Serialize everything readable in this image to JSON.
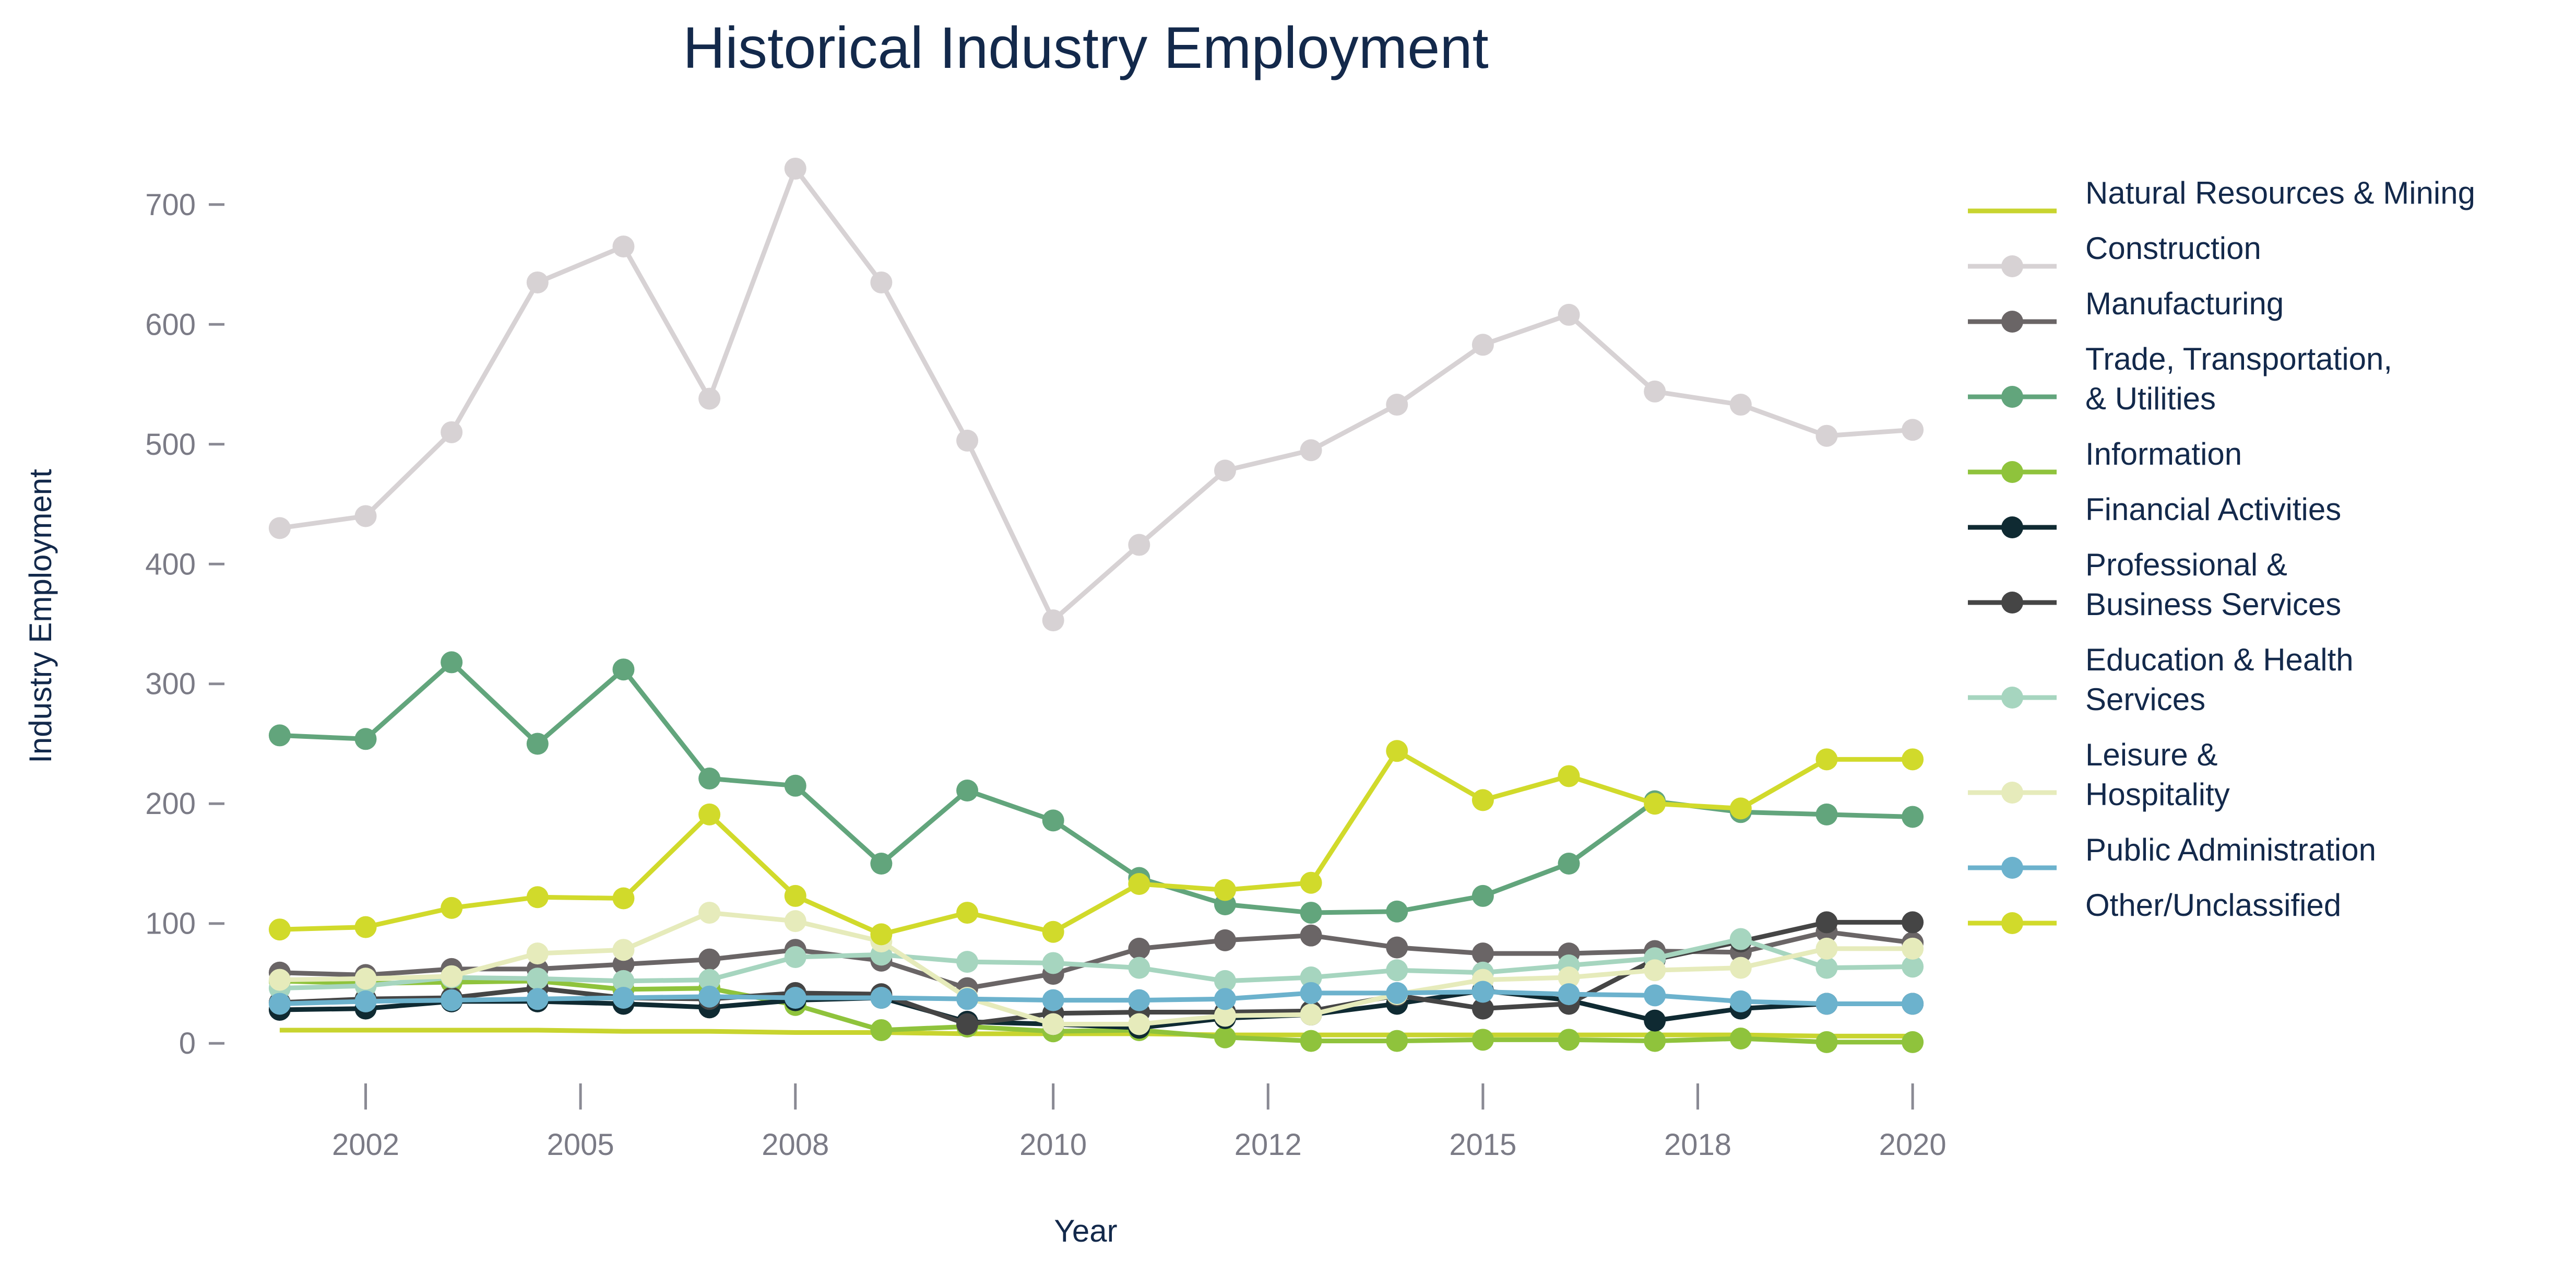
{
  "chart_data": {
    "type": "line",
    "title": "Historical Industry Employment",
    "xlabel": "Year",
    "ylabel": "Industry Employment",
    "x": [
      2001,
      2002,
      2003,
      2004,
      2005,
      2006,
      2007,
      2008,
      2009,
      2010,
      2011,
      2012,
      2013,
      2014,
      2015,
      2016,
      2017,
      2018,
      2019,
      2020
    ],
    "x_ticks": [
      2002,
      2005,
      2008,
      2010,
      2012,
      2015,
      2018,
      2020
    ],
    "x_tick_positions": [
      2002,
      2004.5,
      2007,
      2010,
      2012.5,
      2015,
      2017.5,
      2020
    ],
    "xlim": [
      2000.6,
      2020.4
    ],
    "ylim": [
      -40,
      740
    ],
    "y_ticks": [
      0,
      100,
      200,
      300,
      400,
      500,
      600,
      700
    ],
    "grid": false,
    "legend_position": "right",
    "series": [
      {
        "name": "Natural Resources & Mining",
        "color": "#c8d42f",
        "markers": false,
        "values": [
          11,
          11,
          11,
          11,
          10,
          10,
          9,
          9,
          8,
          8,
          8,
          7,
          7,
          7,
          7,
          7,
          7,
          7,
          6,
          6
        ]
      },
      {
        "name": "Construction",
        "color": "#d7d2d4",
        "markers": true,
        "values": [
          430,
          440,
          510,
          635,
          665,
          538,
          730,
          635,
          503,
          353,
          416,
          478,
          495,
          533,
          583,
          608,
          544,
          533,
          507,
          512
        ]
      },
      {
        "name": "Manufacturing",
        "color": "#6a6566",
        "markers": true,
        "values": [
          59,
          57,
          62,
          62,
          66,
          70,
          78,
          69,
          46,
          58,
          79,
          86,
          90,
          80,
          75,
          75,
          77,
          76,
          93,
          84
        ]
      },
      {
        "name": "Trade, Transportation,\n& Utilities",
        "color": "#62a57c",
        "markers": true,
        "values": [
          257,
          254,
          318,
          250,
          312,
          221,
          215,
          150,
          211,
          186,
          138,
          116,
          109,
          110,
          123,
          150,
          202,
          193,
          191,
          189
        ]
      },
      {
        "name": "Information",
        "color": "#8fc33c",
        "markers": true,
        "values": [
          52,
          50,
          51,
          52,
          45,
          46,
          32,
          11,
          14,
          10,
          11,
          5,
          2,
          2,
          3,
          3,
          2,
          4,
          1,
          1
        ]
      },
      {
        "name": "Financial Activities",
        "color": "#0f2a32",
        "markers": true,
        "values": [
          28,
          29,
          35,
          35,
          33,
          30,
          36,
          38,
          18,
          16,
          13,
          21,
          24,
          33,
          44,
          36,
          19,
          29,
          33,
          33
        ]
      },
      {
        "name": "Professional &\nBusiness Services",
        "color": "#454545",
        "markers": true,
        "values": [
          34,
          37,
          38,
          46,
          38,
          37,
          42,
          41,
          16,
          25,
          26,
          26,
          27,
          40,
          29,
          33,
          70,
          85,
          101,
          101
        ]
      },
      {
        "name": "Education & Health\nServices",
        "color": "#a6d5bf",
        "markers": true,
        "values": [
          46,
          48,
          55,
          54,
          52,
          53,
          72,
          74,
          68,
          67,
          63,
          52,
          55,
          61,
          59,
          65,
          71,
          87,
          63,
          64
        ]
      },
      {
        "name": "Leisure &\nHospitality",
        "color": "#e6ebbb",
        "markers": true,
        "values": [
          53,
          54,
          56,
          75,
          78,
          109,
          102,
          85,
          38,
          16,
          16,
          23,
          24,
          41,
          53,
          55,
          61,
          63,
          79,
          79
        ]
      },
      {
        "name": "Public Administration",
        "color": "#6cb2cd",
        "markers": true,
        "values": [
          33,
          35,
          36,
          37,
          38,
          39,
          38,
          38,
          37,
          36,
          36,
          37,
          42,
          42,
          43,
          41,
          40,
          35,
          33,
          33
        ]
      },
      {
        "name": "Other/Unclassified",
        "color": "#d1da2b",
        "markers": true,
        "values": [
          95,
          97,
          113,
          122,
          121,
          191,
          123,
          91,
          109,
          93,
          133,
          128,
          134,
          244,
          203,
          223,
          200,
          196,
          237,
          237
        ]
      }
    ]
  }
}
